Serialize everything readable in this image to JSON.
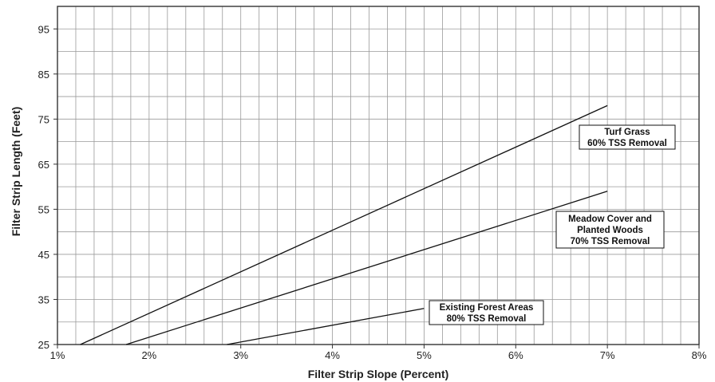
{
  "chart_data": {
    "type": "line",
    "title": "",
    "xlabel": "Filter Strip Slope (Percent)",
    "ylabel": "Filter Strip Length (Feet)",
    "xlim": [
      1,
      8
    ],
    "ylim": [
      25,
      100
    ],
    "x_ticks": [
      1,
      2,
      3,
      4,
      5,
      6,
      7,
      8
    ],
    "x_tick_labels": [
      "1%",
      "2%",
      "3%",
      "4%",
      "5%",
      "6%",
      "7%",
      "8%"
    ],
    "y_ticks": [
      25,
      35,
      45,
      55,
      65,
      75,
      85,
      95
    ],
    "y_tick_labels": [
      "25",
      "35",
      "45",
      "55",
      "65",
      "75",
      "85",
      "95"
    ],
    "x_minor_step": 0.2,
    "y_minor_step": 5,
    "grid": true,
    "legend": "none",
    "series": [
      {
        "name": "Turf Grass\n60% TSS Removal",
        "x": [
          1.25,
          7.0
        ],
        "y": [
          25,
          78
        ]
      },
      {
        "name": "Meadow Cover and\nPlanted Woods\n70% TSS Removal",
        "x": [
          1.75,
          7.0
        ],
        "y": [
          25,
          59
        ]
      },
      {
        "name": "Existing Forest Areas\n80% TSS Removal",
        "x": [
          2.85,
          5.0
        ],
        "y": [
          25,
          33
        ]
      }
    ]
  }
}
